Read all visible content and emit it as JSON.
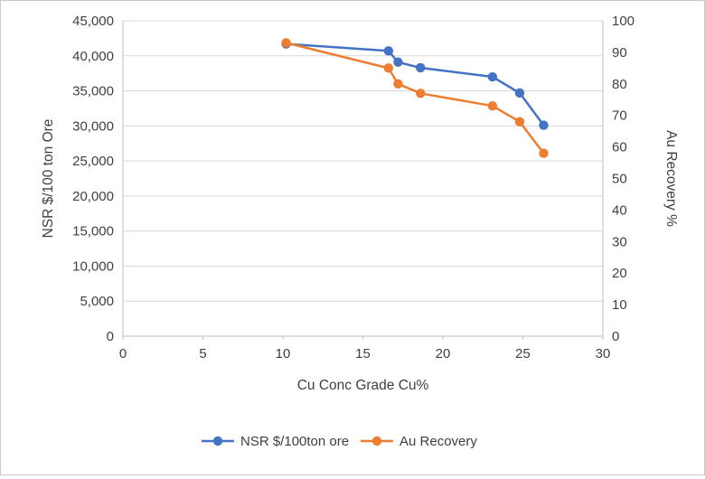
{
  "page": {
    "background": "#FFFFFF",
    "border_color": "#C9C9C9"
  },
  "chart_data": {
    "type": "line",
    "title": "",
    "xlabel": "Cu Conc Grade Cu%",
    "ylabel_left": "NSR $/100 ton Ore",
    "ylabel_right": "Au Recovery %",
    "xlim": [
      0,
      30
    ],
    "xtick_values": [
      0,
      5,
      10,
      15,
      20,
      25,
      30
    ],
    "xtick_labels": [
      "0",
      "5",
      "10",
      "15",
      "20",
      "25",
      "30"
    ],
    "ylim_left": [
      0,
      45000
    ],
    "ytick_left_values": [
      0,
      5000,
      10000,
      15000,
      20000,
      25000,
      30000,
      35000,
      40000,
      45000
    ],
    "ytick_left_labels": [
      "0",
      "5,000",
      "10,000",
      "15,000",
      "20,000",
      "25,000",
      "30,000",
      "35,000",
      "40,000",
      "45,000"
    ],
    "ylim_right": [
      0,
      100
    ],
    "ytick_right_values": [
      0,
      10,
      20,
      30,
      40,
      50,
      60,
      70,
      80,
      90,
      100
    ],
    "ytick_right_labels": [
      "0",
      "10",
      "20",
      "30",
      "40",
      "50",
      "60",
      "70",
      "80",
      "90",
      "100"
    ],
    "grid": true,
    "legend_position": "bottom",
    "series": [
      {
        "name": "NSR $/100ton ore",
        "axis": "left",
        "color": "#4472C4",
        "x": [
          10.2,
          16.6,
          17.2,
          18.6,
          23.1,
          24.8,
          26.3
        ],
        "y": [
          41700,
          40700,
          39100,
          38300,
          37000,
          34700,
          30100
        ]
      },
      {
        "name": "Au Recovery",
        "axis": "right",
        "color": "#ED7D31",
        "x": [
          10.2,
          16.6,
          17.2,
          18.6,
          23.1,
          24.8,
          26.3
        ],
        "y": [
          93,
          85,
          80,
          77,
          73,
          68,
          58
        ]
      }
    ],
    "colors": {
      "grid": "#D9D9D9",
      "axis": "#BFBFBF",
      "text": "#404040"
    }
  }
}
